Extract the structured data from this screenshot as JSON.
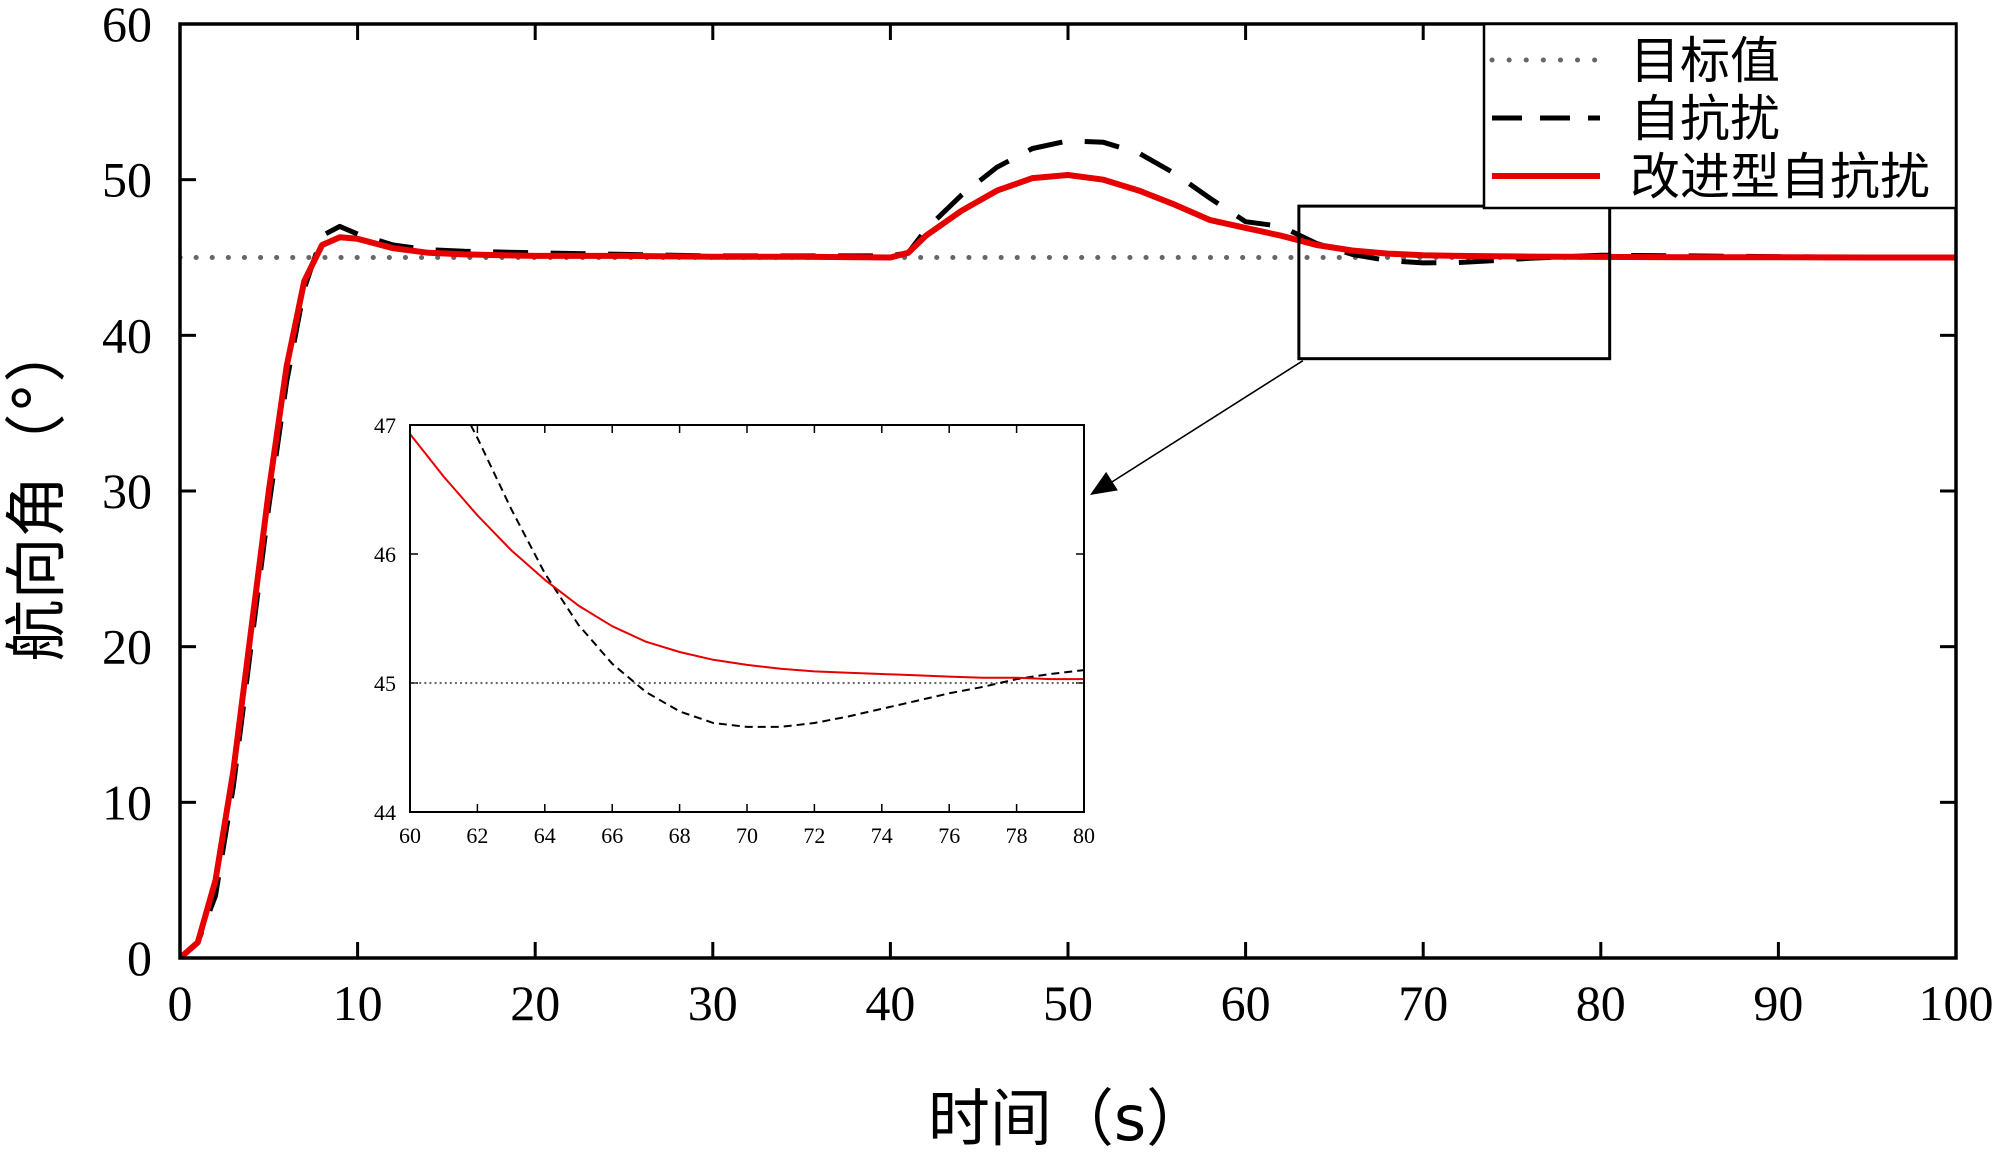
{
  "chart_data": [
    {
      "type": "line",
      "title": "",
      "xlabel": "时间（s）",
      "ylabel": "航向角（°）",
      "xlim": [
        0,
        100
      ],
      "ylim": [
        0,
        60
      ],
      "xticks": [
        0,
        10,
        20,
        30,
        40,
        50,
        60,
        70,
        80,
        90,
        100
      ],
      "yticks": [
        0,
        10,
        20,
        30,
        40,
        50,
        60
      ],
      "grid": false,
      "legend": "top-right",
      "series": [
        {
          "name": "目标值",
          "style": "dotted",
          "color": "#666666",
          "x": [
            0,
            100
          ],
          "y": [
            45,
            45
          ]
        },
        {
          "name": "自抗扰",
          "style": "dashed",
          "color": "#000000",
          "x": [
            0,
            1,
            2,
            3,
            4,
            5,
            6,
            7,
            8,
            9,
            10,
            12,
            14,
            16,
            20,
            25,
            30,
            35,
            40,
            41,
            42,
            44,
            46,
            48,
            50,
            52,
            54,
            56,
            58,
            60,
            62,
            64,
            66,
            68,
            70,
            72,
            74,
            76,
            78,
            80,
            85,
            90,
            95,
            100
          ],
          "y": [
            0,
            1,
            4,
            11,
            20,
            29,
            37,
            43,
            46.4,
            47,
            46.5,
            45.8,
            45.5,
            45.4,
            45.3,
            45.2,
            45.1,
            45.1,
            45.1,
            45.3,
            46.8,
            49,
            50.8,
            52,
            52.5,
            52.4,
            51.7,
            50.4,
            48.8,
            47.3,
            47,
            45.9,
            45.2,
            44.8,
            44.65,
            44.68,
            44.8,
            44.95,
            45.05,
            45.15,
            45.1,
            45.05,
            45,
            45
          ]
        },
        {
          "name": "改进型自抗扰",
          "style": "solid",
          "color": "#e60000",
          "x": [
            0,
            1,
            2,
            3,
            4,
            5,
            6,
            7,
            8,
            9,
            10,
            12,
            14,
            16,
            20,
            25,
            30,
            35,
            40,
            41,
            42,
            44,
            46,
            48,
            50,
            52,
            54,
            56,
            58,
            60,
            62,
            64,
            66,
            68,
            70,
            72,
            74,
            76,
            78,
            80,
            85,
            90,
            95,
            100
          ],
          "y": [
            0,
            1,
            5,
            12,
            21,
            30,
            38,
            43.5,
            45.8,
            46.3,
            46.2,
            45.6,
            45.3,
            45.2,
            45.1,
            45.1,
            45.05,
            45.05,
            45,
            45.3,
            46.4,
            48,
            49.3,
            50.1,
            50.3,
            50,
            49.3,
            48.4,
            47.4,
            46.9,
            46.4,
            45.8,
            45.45,
            45.25,
            45.15,
            45.1,
            45.08,
            45.06,
            45.05,
            45.04,
            45.02,
            45.01,
            45,
            45
          ]
        }
      ],
      "zoom_box": {
        "xlim": [
          63,
          80.5
        ],
        "ylim": [
          38.5,
          48.3
        ]
      }
    },
    {
      "type": "line",
      "title": "",
      "xlabel": "",
      "ylabel": "",
      "xlim": [
        60,
        80
      ],
      "ylim": [
        44,
        47
      ],
      "xticks": [
        60,
        62,
        64,
        66,
        68,
        70,
        72,
        74,
        76,
        78,
        80
      ],
      "yticks": [
        44,
        45,
        46,
        47
      ],
      "grid": false,
      "series": [
        {
          "style": "dotted",
          "color": "#666666",
          "x": [
            60,
            80
          ],
          "y": [
            45,
            45
          ]
        },
        {
          "style": "dashed",
          "color": "#000000",
          "x": [
            61.8,
            62,
            63,
            64,
            65,
            66,
            67,
            68,
            69,
            70,
            71,
            72,
            73,
            74,
            75,
            76,
            77,
            78,
            79,
            80
          ],
          "y": [
            47,
            46.9,
            46.35,
            45.85,
            45.45,
            45.15,
            44.93,
            44.78,
            44.69,
            44.66,
            44.66,
            44.69,
            44.74,
            44.8,
            44.86,
            44.92,
            44.97,
            45.03,
            45.07,
            45.1
          ]
        },
        {
          "style": "solid",
          "color": "#e60000",
          "x": [
            60,
            61,
            62,
            63,
            64,
            65,
            66,
            67,
            68,
            69,
            70,
            71,
            72,
            73,
            74,
            75,
            76,
            77,
            78,
            79,
            80
          ],
          "y": [
            46.93,
            46.6,
            46.3,
            46.03,
            45.8,
            45.6,
            45.44,
            45.32,
            45.24,
            45.18,
            45.14,
            45.11,
            45.09,
            45.08,
            45.07,
            45.06,
            45.05,
            45.04,
            45.04,
            45.03,
            45.03
          ]
        }
      ]
    }
  ]
}
